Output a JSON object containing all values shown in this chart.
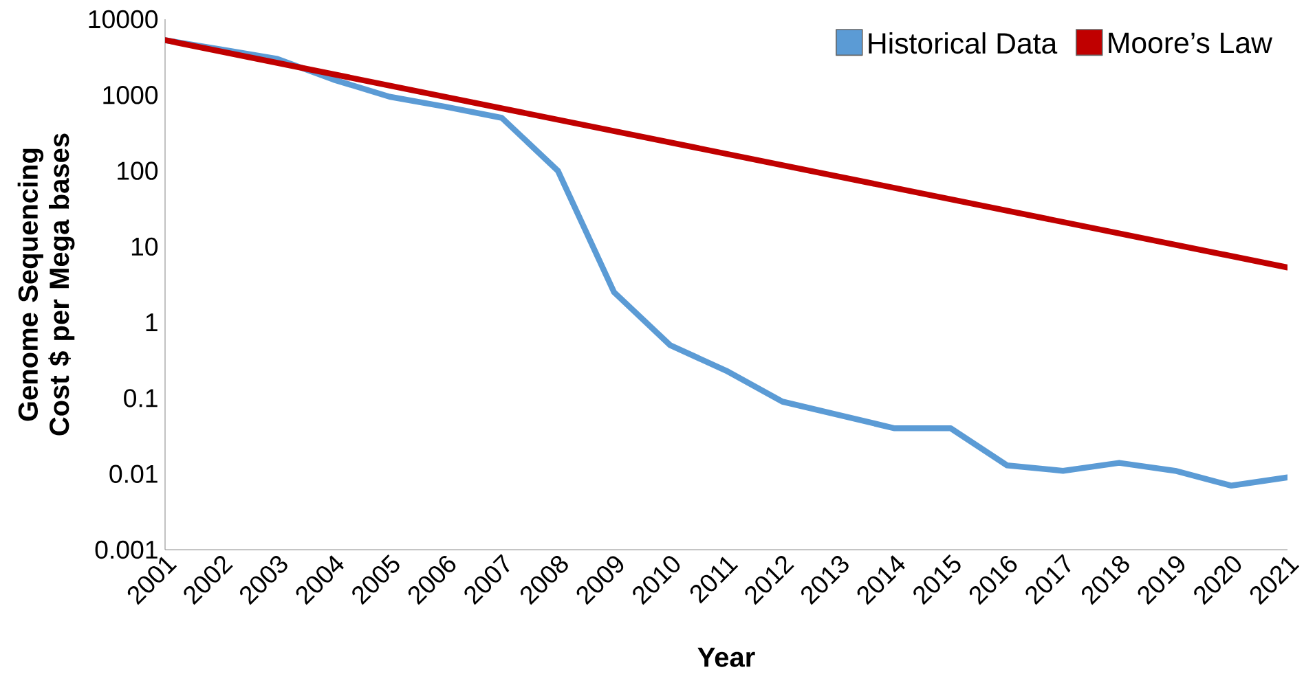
{
  "chart_data": {
    "type": "line",
    "xlabel": "Year",
    "ylabel": "Genome Sequencing Cost $ per Mega bases",
    "xlim": [
      2001,
      2021
    ],
    "xticks": [
      2001,
      2002,
      2003,
      2004,
      2005,
      2006,
      2007,
      2008,
      2009,
      2010,
      2011,
      2012,
      2013,
      2014,
      2015,
      2016,
      2017,
      2018,
      2019,
      2020,
      2021
    ],
    "ylim": [
      0.001,
      10000
    ],
    "yticks": [
      0.001,
      0.01,
      0.1,
      1,
      10,
      100,
      1000,
      10000
    ],
    "log": "y",
    "legend": "top right",
    "marker": "none",
    "line_style": "solid",
    "series": [
      {
        "name": "Historical Data",
        "color": "#5b9bd5",
        "x": [
          2001,
          2002,
          2003,
          2004,
          2005,
          2006,
          2007,
          2008,
          2009,
          2010,
          2011,
          2012,
          2013,
          2014,
          2015,
          2016,
          2017,
          2018,
          2019,
          2020,
          2021
        ],
        "values": [
          5300,
          4000,
          3000,
          1600,
          950,
          700,
          500,
          100,
          2.5,
          0.5,
          0.23,
          0.09,
          0.06,
          0.04,
          0.04,
          0.013,
          0.011,
          0.014,
          0.011,
          0.007,
          0.009
        ]
      },
      {
        "name": "Moore’s Law",
        "color": "#c00000",
        "x": [
          2001,
          2021
        ],
        "values": [
          5300,
          5.3
        ]
      }
    ]
  }
}
